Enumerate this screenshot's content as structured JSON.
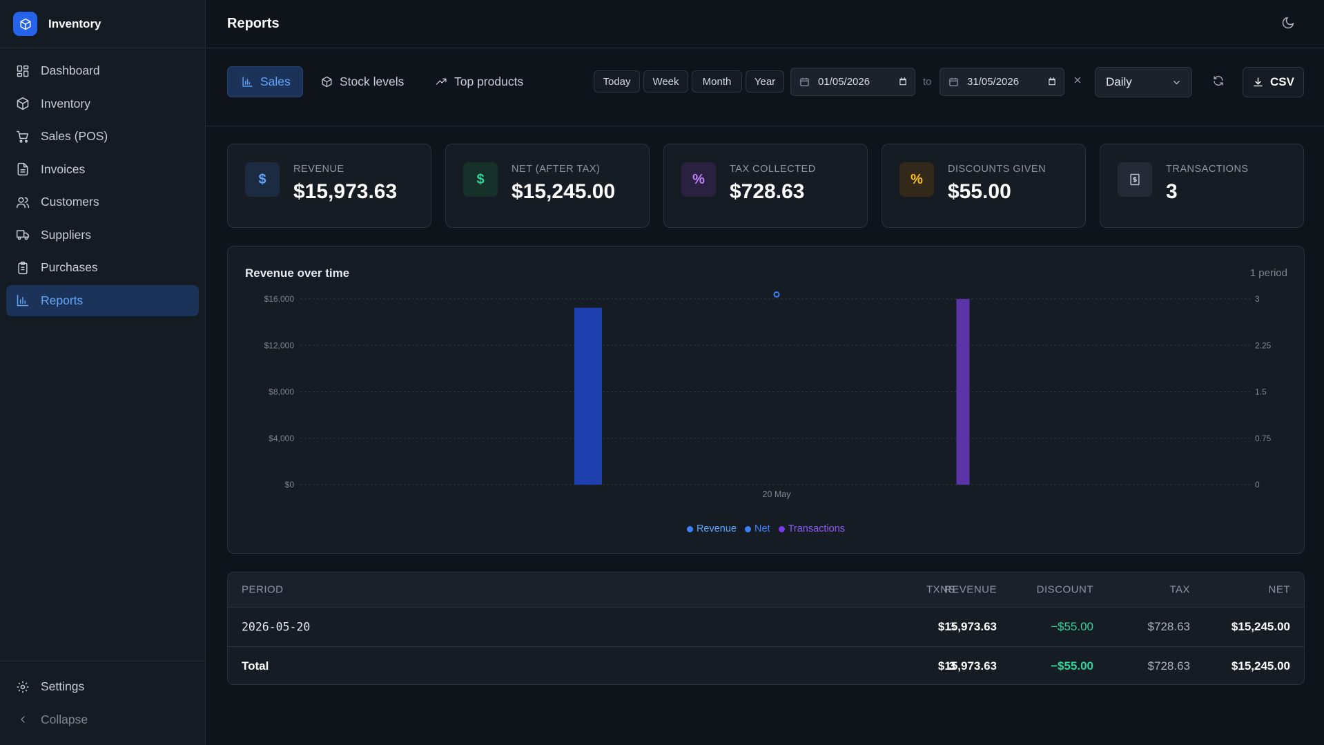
{
  "app": {
    "name": "Inventory"
  },
  "sidebar": {
    "items": [
      {
        "label": "Dashboard",
        "icon": "dashboard-icon"
      },
      {
        "label": "Inventory",
        "icon": "package-icon"
      },
      {
        "label": "Sales (POS)",
        "icon": "cart-icon"
      },
      {
        "label": "Invoices",
        "icon": "file-icon"
      },
      {
        "label": "Customers",
        "icon": "users-icon"
      },
      {
        "label": "Suppliers",
        "icon": "truck-icon"
      },
      {
        "label": "Purchases",
        "icon": "clipboard-icon"
      },
      {
        "label": "Reports",
        "icon": "bar-chart-icon",
        "active": true
      }
    ],
    "settings": "Settings",
    "collapse": "Collapse"
  },
  "header": {
    "title": "Reports"
  },
  "toolbar": {
    "tabs": [
      {
        "label": "Sales",
        "active": true
      },
      {
        "label": "Stock levels"
      },
      {
        "label": "Top products"
      }
    ],
    "quick_ranges": [
      "Today",
      "Week",
      "Month",
      "Year"
    ],
    "date_from": "01/05/2026",
    "date_to_label": "to",
    "date_to": "31/05/2026",
    "granularity": "Daily",
    "csv_label": "CSV"
  },
  "stats": [
    {
      "label": "Revenue",
      "value": "$15,973.63",
      "icon_glyph": "$",
      "icon": "dollar-icon",
      "accent": "#60a5fa",
      "bg": "#1c2a42"
    },
    {
      "label": "Net (after tax)",
      "value": "$15,245.00",
      "icon_glyph": "$",
      "icon": "dollar-icon",
      "accent": "#34d399",
      "bg": "#16302a"
    },
    {
      "label": "Tax collected",
      "value": "$728.63",
      "icon_glyph": "%",
      "icon": "percent-icon",
      "accent": "#c084fc",
      "bg": "#2a2140"
    },
    {
      "label": "Discounts given",
      "value": "$55.00",
      "icon_glyph": "%",
      "icon": "percent-icon",
      "accent": "#fbbf24",
      "bg": "#33291a"
    },
    {
      "label": "Transactions",
      "value": "3",
      "icon_glyph": "",
      "icon": "receipt-icon",
      "accent": "#b8c0cc",
      "bg": "#242b36"
    }
  ],
  "chart": {
    "title": "Revenue over time",
    "meta": "1 period"
  },
  "chart_data": {
    "type": "bar",
    "categories": [
      "20 May"
    ],
    "series": [
      {
        "name": "Revenue",
        "values": [
          15973.63
        ],
        "color": "#3b82f6",
        "axis": "left"
      },
      {
        "name": "Net",
        "values": [
          15245.0
        ],
        "color": "#1e40af",
        "axis": "left"
      },
      {
        "name": "Transactions",
        "values": [
          3
        ],
        "color": "#5b34a8",
        "axis": "right"
      }
    ],
    "left_axis": {
      "ylim": [
        0,
        16000
      ],
      "ticks": [
        "$0",
        "$4,000",
        "$8,000",
        "$12,000",
        "$16,000"
      ]
    },
    "right_axis": {
      "ylim": [
        0,
        3
      ],
      "ticks": [
        "0",
        "0.75",
        "1.5",
        "2.25",
        "3"
      ]
    },
    "grid": true,
    "legend": "bottom-center"
  },
  "table": {
    "headers": [
      "Period",
      "Txns",
      "Revenue",
      "Discount",
      "Tax",
      "Net"
    ],
    "rows": [
      {
        "period": "2026-05-20",
        "txns": "3",
        "revenue": "$15,973.63",
        "discount": "−$55.00",
        "tax": "$728.63",
        "net": "$15,245.00"
      }
    ],
    "total": {
      "period": "Total",
      "txns": "3",
      "revenue": "$15,973.63",
      "discount": "−$55.00",
      "tax": "$728.63",
      "net": "$15,245.00"
    }
  },
  "colors": {
    "accent": "#3b82f6",
    "positive": "#34d399"
  }
}
